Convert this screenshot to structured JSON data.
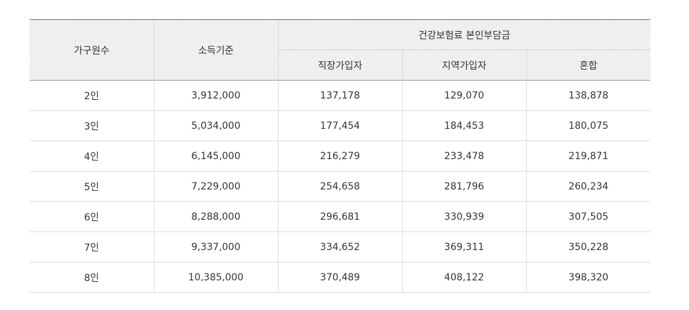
{
  "table": {
    "headers": {
      "household": "가구원수",
      "income": "소득기준",
      "premium_group": "건강보험료 본인부담금",
      "employee": "직장가입자",
      "regional": "지역가입자",
      "mixed": "혼합"
    },
    "rows": [
      {
        "household": "2인",
        "income": "3,912,000",
        "employee": "137,178",
        "regional": "129,070",
        "mixed": "138,878"
      },
      {
        "household": "3인",
        "income": "5,034,000",
        "employee": "177,454",
        "regional": "184,453",
        "mixed": "180,075"
      },
      {
        "household": "4인",
        "income": "6,145,000",
        "employee": "216,279",
        "regional": "233,478",
        "mixed": "219,871"
      },
      {
        "household": "5인",
        "income": "7,229,000",
        "employee": "254,658",
        "regional": "281,796",
        "mixed": "260,234"
      },
      {
        "household": "6인",
        "income": "8,288,000",
        "employee": "296,681",
        "regional": "330,939",
        "mixed": "307,505"
      },
      {
        "household": "7인",
        "income": "9,337,000",
        "employee": "334,652",
        "regional": "369,311",
        "mixed": "350,228"
      },
      {
        "household": "8인",
        "income": "10,385,000",
        "employee": "370,489",
        "regional": "408,122",
        "mixed": "398,320"
      }
    ]
  },
  "colors": {
    "top_border": "#2e8b6f",
    "header_bg": "#f1f1f1",
    "text": "#333333"
  }
}
